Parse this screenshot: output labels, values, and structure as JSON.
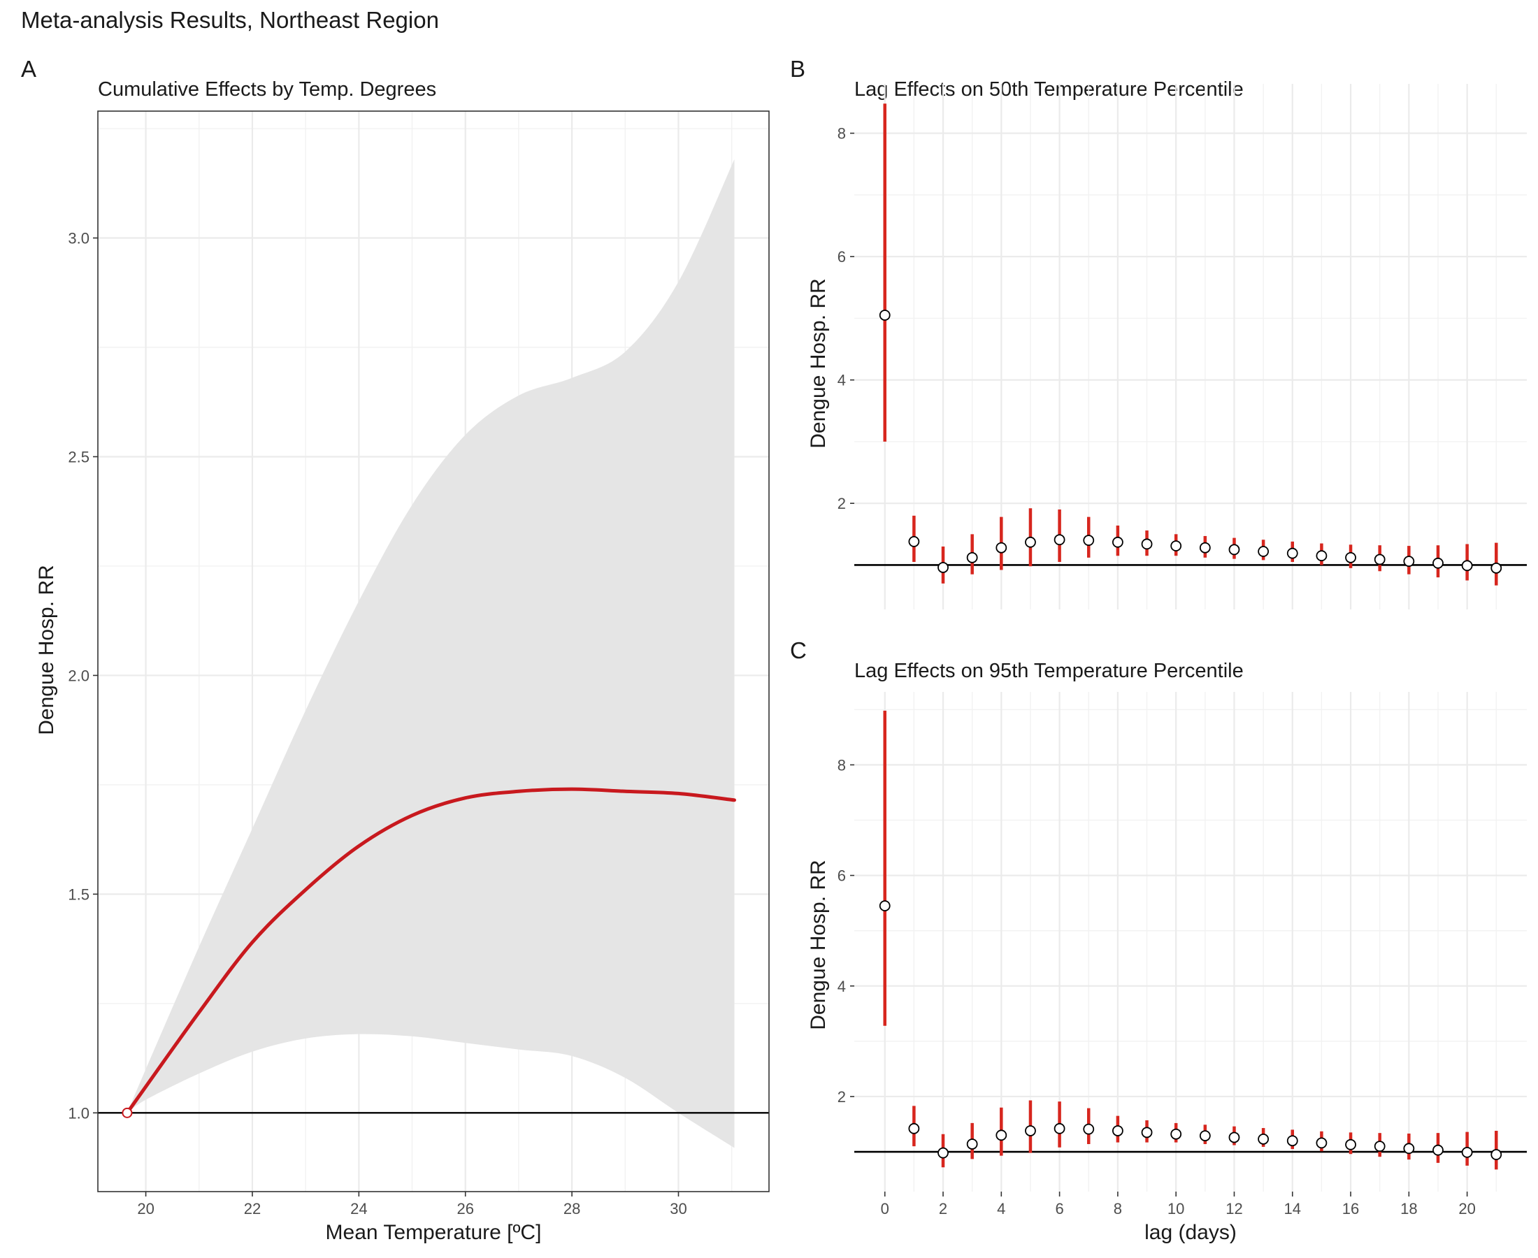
{
  "figure": {
    "title": "Meta-analysis Results, Northeast Region"
  },
  "chart_data": [
    {
      "id": "A",
      "type": "line",
      "panel_tag": "A",
      "title": "Cumulative Effects by Temp. Degrees",
      "xlabel": "Mean Temperature [ºC]",
      "ylabel": "Dengue Hosp. RR",
      "xlim": [
        19.1,
        31.7
      ],
      "ylim": [
        0.82,
        3.29
      ],
      "x_ticks": [
        20,
        22,
        24,
        26,
        28,
        30
      ],
      "x_tick_labels": [
        "20",
        "22",
        "24",
        "26",
        "28",
        "30"
      ],
      "y_ticks": [
        1.0,
        1.5,
        2.0,
        2.5,
        3.0
      ],
      "y_tick_labels": [
        "1.0",
        "1.5",
        "2.0",
        "2.5",
        "3.0"
      ],
      "reference_line": 1.0,
      "reference_point": {
        "x": 19.65,
        "y": 1.0
      },
      "grid": true,
      "line_color": "#c8191e",
      "band_color": "#e5e5e5",
      "x": [
        19.65,
        20,
        21,
        22,
        23,
        24,
        25,
        26,
        27,
        28,
        29,
        30,
        31.05
      ],
      "y": [
        1.0,
        1.06,
        1.23,
        1.39,
        1.51,
        1.61,
        1.68,
        1.72,
        1.735,
        1.74,
        1.735,
        1.73,
        1.715
      ],
      "lower": [
        1.0,
        1.03,
        1.09,
        1.14,
        1.17,
        1.18,
        1.175,
        1.16,
        1.145,
        1.13,
        1.08,
        1.0,
        0.92
      ],
      "upper": [
        1.0,
        1.1,
        1.38,
        1.65,
        1.92,
        2.17,
        2.39,
        2.55,
        2.64,
        2.68,
        2.74,
        2.9,
        3.18
      ]
    },
    {
      "id": "B",
      "type": "scatter",
      "panel_tag": "B",
      "title": "Lag Effects on 50th Temperature Percentile",
      "xlabel": "",
      "ylabel": "Dengue Hosp. RR",
      "xlim": [
        -1.05,
        22.05
      ],
      "ylim": [
        0.28,
        8.8
      ],
      "y_ticks": [
        2,
        4,
        6,
        8
      ],
      "y_tick_labels": [
        "2",
        "4",
        "6",
        "8"
      ],
      "reference_line": 1.0,
      "grid": true,
      "errorbar_color": "#d7261e",
      "x": [
        0,
        1,
        2,
        3,
        4,
        5,
        6,
        7,
        8,
        9,
        10,
        11,
        12,
        13,
        14,
        15,
        16,
        17,
        18,
        19,
        20,
        21
      ],
      "y": [
        5.05,
        1.38,
        0.96,
        1.12,
        1.28,
        1.37,
        1.41,
        1.4,
        1.37,
        1.34,
        1.31,
        1.28,
        1.25,
        1.22,
        1.19,
        1.15,
        1.12,
        1.09,
        1.06,
        1.03,
        0.99,
        0.95
      ],
      "lower": [
        3.0,
        1.05,
        0.7,
        0.85,
        0.92,
        0.98,
        1.05,
        1.12,
        1.15,
        1.15,
        1.15,
        1.12,
        1.1,
        1.08,
        1.05,
        1.0,
        0.95,
        0.9,
        0.85,
        0.8,
        0.75,
        0.67
      ],
      "upper": [
        8.48,
        1.8,
        1.3,
        1.5,
        1.78,
        1.92,
        1.9,
        1.78,
        1.64,
        1.56,
        1.5,
        1.47,
        1.44,
        1.41,
        1.38,
        1.35,
        1.33,
        1.32,
        1.31,
        1.32,
        1.34,
        1.36
      ]
    },
    {
      "id": "C",
      "type": "scatter",
      "panel_tag": "C",
      "title": "Lag Effects on 95th Temperature Percentile",
      "xlabel": "lag (days)",
      "ylabel": "Dengue Hosp. RR",
      "xlim": [
        -1.05,
        22.05
      ],
      "ylim": [
        0.28,
        9.32
      ],
      "x_ticks": [
        0,
        2,
        4,
        6,
        8,
        10,
        12,
        14,
        16,
        18,
        20
      ],
      "x_tick_labels": [
        "0",
        "2",
        "4",
        "6",
        "8",
        "10",
        "12",
        "14",
        "16",
        "18",
        "20"
      ],
      "y_ticks": [
        2,
        4,
        6,
        8
      ],
      "y_tick_labels": [
        "2",
        "4",
        "6",
        "8"
      ],
      "reference_line": 1.0,
      "grid": true,
      "errorbar_color": "#d7261e",
      "x": [
        0,
        1,
        2,
        3,
        4,
        5,
        6,
        7,
        8,
        9,
        10,
        11,
        12,
        13,
        14,
        15,
        16,
        17,
        18,
        19,
        20,
        21
      ],
      "y": [
        5.45,
        1.42,
        0.98,
        1.14,
        1.3,
        1.38,
        1.42,
        1.41,
        1.38,
        1.35,
        1.32,
        1.29,
        1.26,
        1.23,
        1.2,
        1.16,
        1.13,
        1.1,
        1.06,
        1.03,
        0.99,
        0.95
      ],
      "lower": [
        3.28,
        1.1,
        0.72,
        0.87,
        0.93,
        0.98,
        1.08,
        1.14,
        1.17,
        1.17,
        1.17,
        1.14,
        1.12,
        1.09,
        1.05,
        1.01,
        0.96,
        0.91,
        0.86,
        0.8,
        0.75,
        0.68
      ],
      "upper": [
        8.98,
        1.83,
        1.32,
        1.52,
        1.8,
        1.93,
        1.91,
        1.79,
        1.65,
        1.57,
        1.52,
        1.49,
        1.46,
        1.43,
        1.4,
        1.37,
        1.35,
        1.34,
        1.33,
        1.34,
        1.36,
        1.38
      ]
    }
  ]
}
